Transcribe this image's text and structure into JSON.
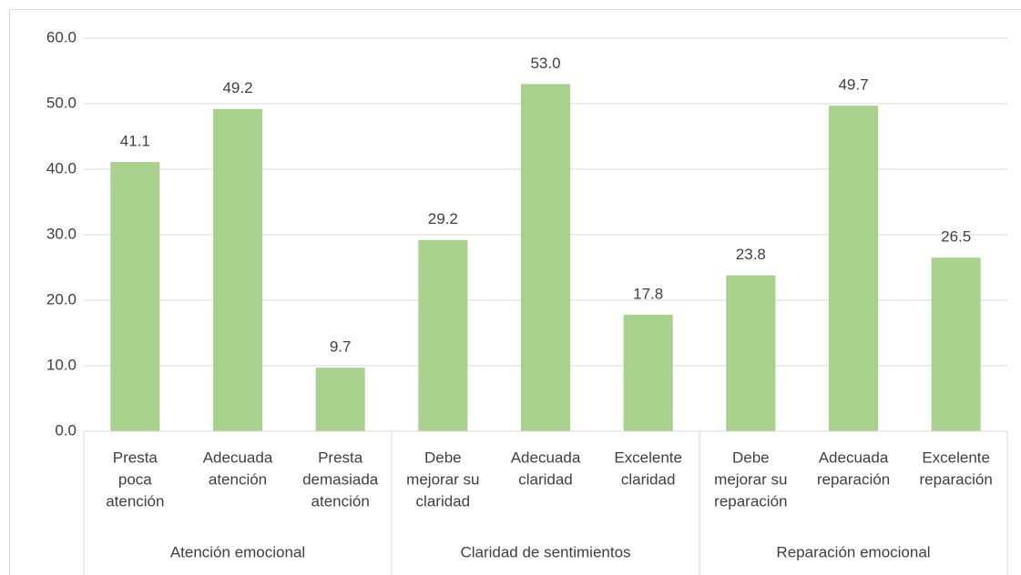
{
  "chart_data": {
    "type": "bar",
    "groups": [
      {
        "name": "Atención emocional",
        "categories": [
          [
            "Presta",
            "poca",
            "atención"
          ],
          [
            "Adecuada",
            "atención"
          ],
          [
            "Presta",
            "demasiada",
            "atención"
          ]
        ]
      },
      {
        "name": "Claridad de sentimientos",
        "categories": [
          [
            "Debe",
            "mejorar su",
            "claridad"
          ],
          [
            "Adecuada",
            "claridad"
          ],
          [
            "Excelente",
            "claridad"
          ]
        ]
      },
      {
        "name": "Reparación emocional",
        "categories": [
          [
            "Debe",
            "mejorar su",
            "reparación"
          ],
          [
            "Adecuada",
            "reparación"
          ],
          [
            "Excelente",
            "reparación"
          ]
        ]
      }
    ],
    "values": [
      41.1,
      49.2,
      9.7,
      29.2,
      53.0,
      17.8,
      23.8,
      49.7,
      26.5
    ],
    "value_labels": [
      "41.1",
      "49.2",
      "9.7",
      "29.2",
      "53.0",
      "17.8",
      "23.8",
      "49.7",
      "26.5"
    ],
    "color": "#a9d18e",
    "ylim": [
      0,
      60
    ],
    "yticks": [
      {
        "value": 0,
        "label": "0.0"
      },
      {
        "value": 10,
        "label": "10.0"
      },
      {
        "value": 20,
        "label": "20.0"
      },
      {
        "value": 30,
        "label": "30.0"
      },
      {
        "value": 40,
        "label": "40.0"
      },
      {
        "value": 50,
        "label": "50.0"
      },
      {
        "value": 60,
        "label": "60.0"
      }
    ],
    "grid": true
  }
}
